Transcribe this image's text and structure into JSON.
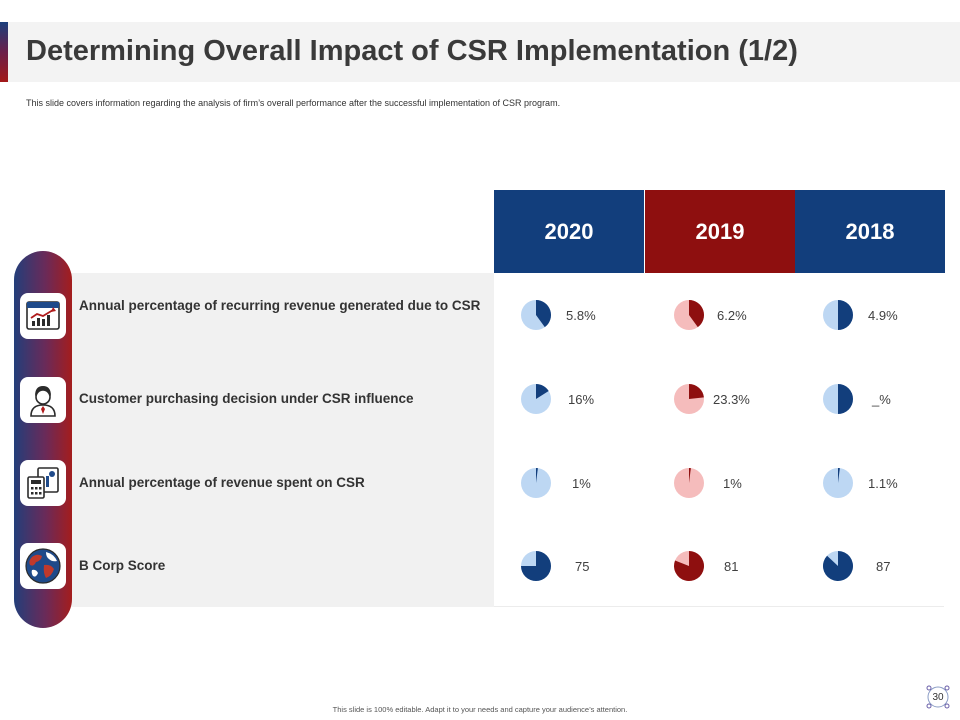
{
  "slide": {
    "title": "Determining Overall Impact of CSR Implementation (1/2)",
    "subtitle": "This slide covers information regarding the analysis of firm’s overall performance after the successful implementation of CSR program.",
    "footer": "This slide is 100% editable. Adapt it to your needs and capture your audience’s attention.",
    "page_number": "30"
  },
  "colors": {
    "blue_dark": "#123e7c",
    "blue_light": "#bdd7f3",
    "red_dark": "#8e0f0f",
    "red_light": "#f5bcbc"
  },
  "table": {
    "columns": [
      {
        "label": "2020",
        "theme": "blue"
      },
      {
        "label": "2019",
        "theme": "red"
      },
      {
        "label": "2018",
        "theme": "blue"
      }
    ],
    "rows": [
      {
        "label": "Annual  percentage of recurring revenue generated due to CSR",
        "icon": "growth-chart-icon",
        "values": [
          "5.8%",
          "6.2%",
          "4.9%"
        ],
        "fill_fractions": [
          0.4,
          0.4,
          0.5
        ]
      },
      {
        "label": "Customer purchasing  decision under CSR influence",
        "icon": "customer-person-icon",
        "values": [
          "16%",
          "23.3%",
          "_%"
        ],
        "fill_fractions": [
          0.16,
          0.233,
          0.5
        ]
      },
      {
        "label": "Annual  percentage of revenue spent on CSR",
        "icon": "calculator-report-icon",
        "values": [
          "1%",
          "1%",
          "1.1%"
        ],
        "fill_fractions": [
          0.02,
          0.02,
          0.02
        ]
      },
      {
        "label": "B Corp Score",
        "icon": "globe-icon",
        "values": [
          "75",
          "81",
          "87"
        ],
        "fill_fractions": [
          0.75,
          0.81,
          0.87
        ]
      }
    ]
  }
}
